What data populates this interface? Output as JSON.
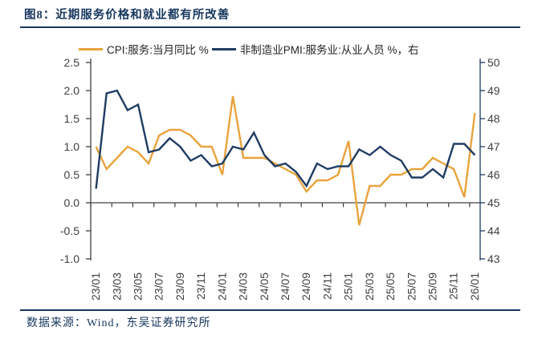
{
  "figure": {
    "title": "图8：近期服务价格和就业都有所改善"
  },
  "footer": {
    "source": "数据来源：Wind，东吴证券研究所"
  },
  "chart_data": {
    "type": "line",
    "title": "图8：近期服务价格和就业都有所改善",
    "legend_position": "top",
    "grid": false,
    "months": [
      "23/01",
      "23/02",
      "23/03",
      "23/04",
      "23/05",
      "23/06",
      "23/07",
      "23/08",
      "23/09",
      "23/10",
      "23/11",
      "23/12",
      "24/01",
      "24/02",
      "24/03",
      "24/04",
      "24/05",
      "24/06",
      "24/07",
      "24/08",
      "24/09",
      "24/10",
      "24/11",
      "24/12",
      "25/01",
      "25/02",
      "25/03",
      "25/04",
      "25/05",
      "25/06",
      "25/07",
      "25/08",
      "25/09",
      "25/10",
      "25/11",
      "25/12",
      "26/01"
    ],
    "x_tick_labels": [
      "23/01",
      "23/03",
      "23/05",
      "23/07",
      "23/09",
      "23/11",
      "24/01",
      "24/03",
      "24/05",
      "24/07",
      "24/09",
      "24/11",
      "25/01",
      "25/03",
      "25/05",
      "25/07",
      "25/09",
      "25/11",
      "26/01"
    ],
    "left_axis": {
      "min": -1.0,
      "max": 2.5,
      "step": 0.5,
      "tick_labels": [
        "2.5",
        "2.0",
        "1.5",
        "1.0",
        "0.5",
        "0.0",
        "-0.5",
        "-1.0"
      ],
      "color": "#404040"
    },
    "right_axis": {
      "min": 43,
      "max": 50,
      "step": 1,
      "tick_labels": [
        "50",
        "49",
        "48",
        "47",
        "46",
        "45",
        "44",
        "43"
      ],
      "color": "#1f3c63"
    },
    "zero_baseline_left": 0.0,
    "series": [
      {
        "name": "CPI:服务:当月同比 %",
        "axis": "left",
        "color": "#e8a33c",
        "values": [
          1.0,
          0.6,
          0.8,
          1.0,
          0.9,
          0.7,
          1.2,
          1.3,
          1.3,
          1.2,
          1.0,
          1.0,
          0.5,
          1.9,
          0.8,
          0.8,
          0.8,
          0.7,
          0.6,
          0.5,
          0.2,
          0.4,
          0.4,
          0.5,
          1.1,
          -0.4,
          0.3,
          0.3,
          0.5,
          0.5,
          0.6,
          0.6,
          0.8,
          0.7,
          0.6,
          0.1,
          1.6
        ]
      },
      {
        "name": "非制造业PMI:服务业:从业人员 %，右",
        "axis": "right",
        "color": "#1f3c63",
        "values": [
          45.5,
          48.9,
          49.0,
          48.3,
          48.5,
          46.8,
          46.9,
          47.3,
          47.0,
          46.5,
          46.7,
          46.3,
          46.4,
          47.0,
          46.9,
          47.5,
          46.7,
          46.3,
          46.4,
          46.1,
          45.6,
          46.4,
          46.2,
          46.3,
          46.3,
          46.9,
          46.7,
          47.0,
          46.7,
          46.5,
          45.9,
          45.9,
          46.2,
          45.9,
          47.1,
          47.1,
          46.7
        ]
      }
    ]
  }
}
